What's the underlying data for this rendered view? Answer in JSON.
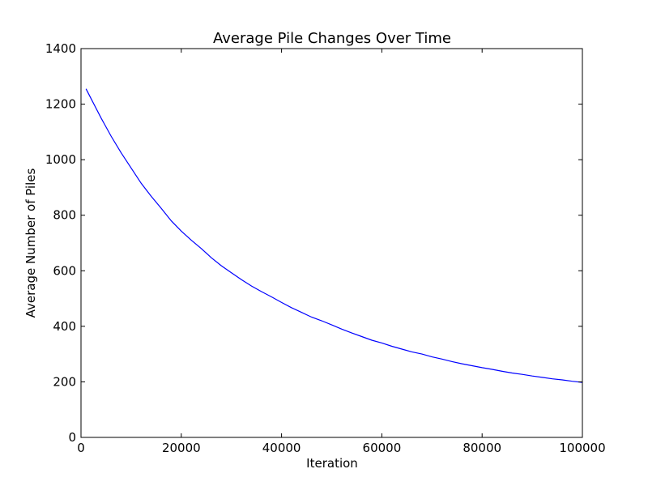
{
  "chart_data": {
    "type": "line",
    "title": "Average Pile Changes Over Time",
    "xlabel": "Iteration",
    "ylabel": "Average Number of Piles",
    "xlim": [
      0,
      100000
    ],
    "ylim": [
      0,
      1400
    ],
    "xticks": [
      0,
      20000,
      40000,
      60000,
      80000,
      100000
    ],
    "yticks": [
      0,
      200,
      400,
      600,
      800,
      1000,
      1200,
      1400
    ],
    "grid": false,
    "line_color": "#0000ff",
    "series": [
      {
        "x": [
          1000,
          2000,
          4000,
          6000,
          8000,
          10000,
          12000,
          14000,
          16000,
          18000,
          20000,
          22000,
          24000,
          26000,
          28000,
          30000,
          32000,
          34000,
          36000,
          38000,
          40000,
          42000,
          44000,
          46000,
          48000,
          50000,
          52000,
          54000,
          56000,
          58000,
          60000,
          62000,
          64000,
          66000,
          68000,
          70000,
          72000,
          74000,
          76000,
          78000,
          80000,
          82000,
          84000,
          86000,
          88000,
          90000,
          92000,
          94000,
          96000,
          98000,
          100000
        ],
        "values": [
          1255,
          1220,
          1150,
          1085,
          1025,
          970,
          915,
          868,
          825,
          780,
          743,
          710,
          680,
          647,
          618,
          593,
          568,
          545,
          525,
          506,
          486,
          467,
          450,
          433,
          420,
          405,
          390,
          376,
          363,
          350,
          340,
          328,
          318,
          308,
          300,
          290,
          282,
          273,
          265,
          258,
          251,
          245,
          238,
          232,
          227,
          221,
          216,
          211,
          207,
          202,
          198
        ]
      }
    ]
  }
}
